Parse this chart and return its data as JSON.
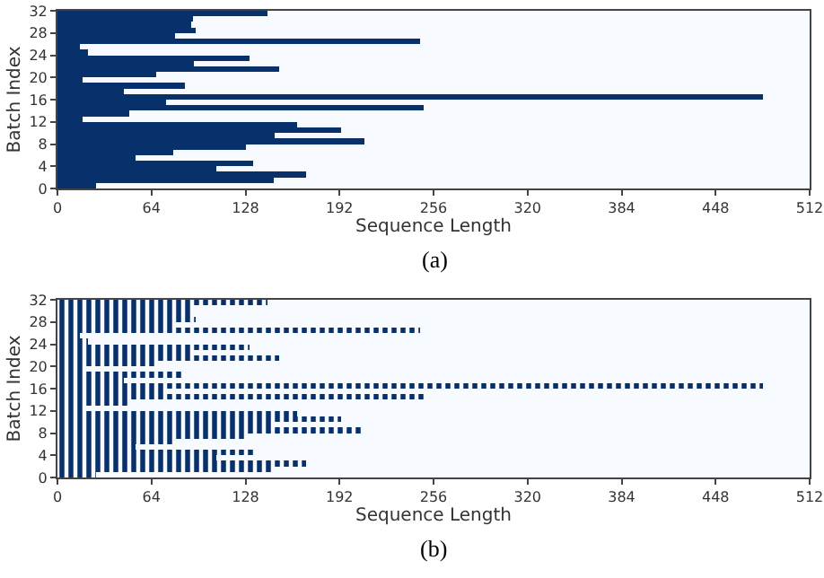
{
  "chart_data": [
    {
      "type": "bar",
      "orientation": "horizontal",
      "xlabel": "Sequence Length",
      "ylabel": "Batch Index",
      "color": "#08306b",
      "x": [
        0.5,
        1.5,
        2.5,
        3.5,
        4.5,
        5.5,
        6.5,
        7.5,
        8.5,
        9.5,
        10.5,
        11.5,
        12.5,
        13.5,
        14.5,
        15.5,
        16.5,
        17.5,
        18.5,
        19.5,
        20.5,
        21.5,
        22.5,
        23.5,
        24.5,
        25.5,
        26.5,
        27.5,
        28.5,
        29.5,
        30.5,
        31.5
      ],
      "values": [
        26,
        147,
        169,
        108,
        133,
        53,
        79,
        128,
        209,
        148,
        193,
        163,
        17,
        49,
        249,
        74,
        480,
        45,
        87,
        17,
        67,
        151,
        93,
        131,
        21,
        15,
        247,
        80,
        94,
        91,
        92,
        143
      ],
      "xlim": [
        0,
        512
      ],
      "xticks": [
        0,
        64,
        128,
        192,
        256,
        320,
        384,
        448,
        512
      ],
      "ylim": [
        0,
        32
      ],
      "yticks": [
        0,
        4,
        8,
        12,
        16,
        20,
        24,
        28,
        32
      ],
      "grid": false,
      "legend": false,
      "annotations": [
        "(a)"
      ]
    },
    {
      "type": "bar",
      "orientation": "horizontal",
      "xlabel": "Sequence Length",
      "ylabel": "Batch Index",
      "color": "#08306b",
      "x": [
        0.5,
        1.5,
        2.5,
        3.5,
        4.5,
        5.5,
        6.5,
        7.5,
        8.5,
        9.5,
        10.5,
        11.5,
        12.5,
        13.5,
        14.5,
        15.5,
        16.5,
        17.5,
        18.5,
        19.5,
        20.5,
        21.5,
        22.5,
        23.5,
        24.5,
        25.5,
        26.5,
        27.5,
        28.5,
        29.5,
        30.5,
        31.5
      ],
      "values": [
        26,
        147,
        169,
        108,
        133,
        53,
        79,
        128,
        209,
        148,
        193,
        163,
        17,
        49,
        249,
        74,
        480,
        45,
        87,
        17,
        67,
        151,
        93,
        131,
        21,
        15,
        247,
        80,
        94,
        91,
        92,
        143
      ],
      "xlim": [
        0,
        512
      ],
      "xticks": [
        0,
        64,
        128,
        192,
        256,
        320,
        384,
        448,
        512
      ],
      "ylim": [
        0,
        32
      ],
      "yticks": [
        0,
        4,
        8,
        12,
        16,
        20,
        24,
        28,
        32
      ],
      "grid": false,
      "legend": false,
      "annotations": [
        "(b)"
      ]
    }
  ]
}
